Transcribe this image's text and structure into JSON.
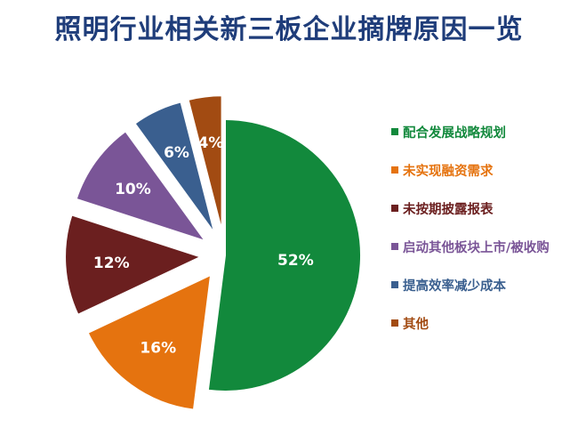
{
  "title": "照明行业相关新三板企业摘牌原因一览",
  "chart_data": {
    "type": "pie",
    "title": "照明行业相关新三板企业摘牌原因一览",
    "start_angle_deg": 0,
    "direction": "clockwise",
    "exploded": true,
    "legend_position": "right",
    "slices": [
      {
        "label": "配合发展战略规划",
        "value": 52,
        "display": "52%",
        "color": "#12893c"
      },
      {
        "label": "未实现融资需求",
        "value": 16,
        "display": "16%",
        "color": "#e5730f"
      },
      {
        "label": "未按期披露报表",
        "value": 12,
        "display": "12%",
        "color": "#6b1f1f"
      },
      {
        "label": "启动其他板块上市/被收购",
        "value": 10,
        "display": "10%",
        "color": "#7a5597"
      },
      {
        "label": "提高效率减少成本",
        "value": 6,
        "display": "6%",
        "color": "#3a5f8f"
      },
      {
        "label": "其他",
        "value": 4,
        "display": "4%",
        "color": "#a24b12"
      }
    ]
  }
}
